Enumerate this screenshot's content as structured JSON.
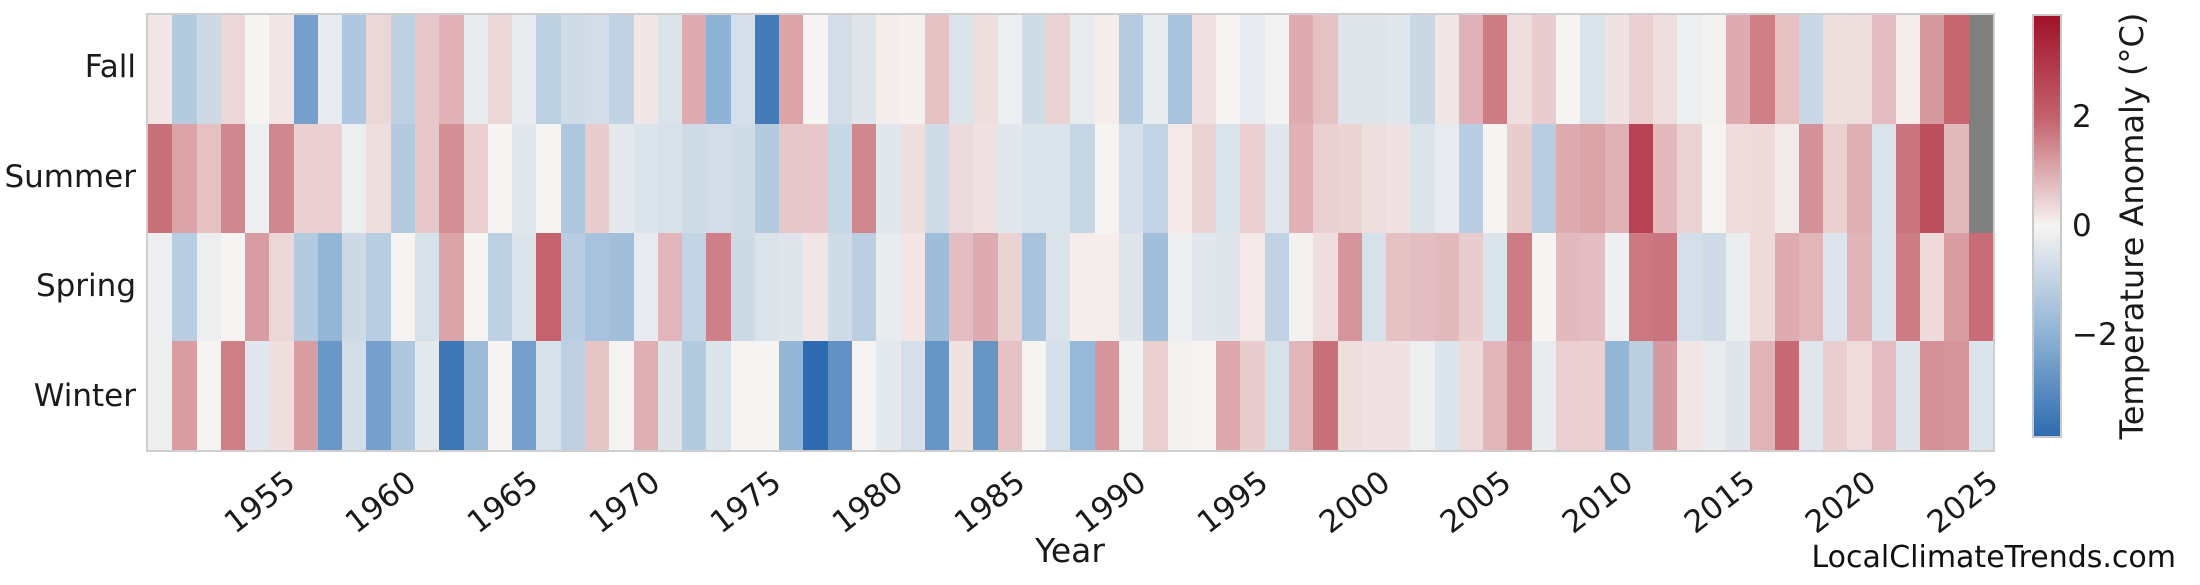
{
  "watermark": "LocalClimateTrends.com",
  "chart_data": {
    "type": "heatmap",
    "xlabel": "Year",
    "colorbar_label": "Temperature Anomaly (°C)",
    "rows": [
      "Fall",
      "Summer",
      "Spring",
      "Winter"
    ],
    "year_start": 1950,
    "year_end": 2025,
    "x_tick_labels": [
      "1955",
      "1960",
      "1965",
      "1970",
      "1975",
      "1980",
      "1985",
      "1990",
      "1995",
      "2000",
      "2005",
      "2010",
      "2015",
      "2020",
      "2025"
    ],
    "colorbar_ticks": [
      {
        "label": "2",
        "value": 2
      },
      {
        "label": "0",
        "value": 0
      },
      {
        "label": "−2",
        "value": -2
      }
    ],
    "vmin": -3.9,
    "vmax": 3.9,
    "colormap_stops": [
      [
        -3.9,
        "#2f6bb0"
      ],
      [
        -2,
        "#8fb3d5"
      ],
      [
        0,
        "#f6f4f2"
      ],
      [
        2,
        "#c4626e"
      ],
      [
        3.9,
        "#a01229"
      ]
    ],
    "missing_color": "#808080",
    "grid": false,
    "legend_position": "right-colorbar",
    "series": [
      {
        "name": "Fall",
        "values": [
          0.2,
          -1.3,
          -0.8,
          0.4,
          0,
          0.2,
          -2.5,
          -0.3,
          -1.4,
          0.4,
          -1.1,
          0.6,
          0.9,
          -0.25,
          0.4,
          -0.25,
          -1.1,
          -0.75,
          -0.7,
          -1.05,
          0.2,
          -0.55,
          1.0,
          -2.0,
          -0.65,
          -3.5,
          1.1,
          0,
          -0.7,
          -0.45,
          0.1,
          0.05,
          0.7,
          -0.5,
          0.3,
          -0.2,
          -0.75,
          0.45,
          -0.25,
          0.1,
          -1.25,
          -0.25,
          -1.5,
          0.25,
          0,
          -0.3,
          -0.05,
          1.0,
          0.7,
          -0.45,
          -0.45,
          -0.4,
          -0.85,
          0.2,
          0.9,
          1.65,
          0.3,
          0.55,
          0,
          -0.55,
          0.25,
          0.5,
          0.3,
          -0.2,
          -0.05,
          1.0,
          1.6,
          0.7,
          -0.85,
          0.28,
          0.3,
          0.75,
          0.1,
          1.25,
          1.95,
          null
        ]
      },
      {
        "name": "Summer",
        "values": [
          1.8,
          1.1,
          0.7,
          1.5,
          -0.2,
          1.5,
          0.5,
          0.5,
          -0.2,
          0.3,
          -1.3,
          0.6,
          1.4,
          0.5,
          0,
          -0.4,
          0,
          -1.4,
          0.55,
          -0.35,
          -0.5,
          -0.6,
          -0.75,
          -0.7,
          -0.75,
          -1.3,
          0.6,
          0.6,
          -0.9,
          1.5,
          -0.4,
          0.3,
          -0.75,
          0.35,
          0.25,
          -0.4,
          -0.55,
          -0.5,
          -0.95,
          0,
          -0.65,
          -1.0,
          0.15,
          0.45,
          -0.5,
          0.5,
          -0.4,
          0.9,
          0.5,
          0.45,
          0.3,
          0.25,
          -0.5,
          -0.3,
          -1.2,
          0,
          0.55,
          -1.2,
          1.0,
          1.1,
          0.9,
          2.75,
          0.8,
          0.45,
          0,
          0.33,
          0.35,
          0.12,
          1.35,
          0.5,
          0.95,
          -0.55,
          1.75,
          2.45,
          0.8,
          null
        ]
      },
      {
        "name": "Spring",
        "values": [
          -0.2,
          -1.2,
          -0.2,
          0,
          1.2,
          0.4,
          -1.3,
          -1.9,
          -0.8,
          -1.2,
          0,
          -0.6,
          1.1,
          0,
          -1.1,
          -0.5,
          2.0,
          -1.2,
          -1.55,
          -1.65,
          -0.3,
          0.85,
          -1.0,
          1.6,
          -0.8,
          -0.55,
          -0.45,
          0.2,
          -0.75,
          -1.15,
          -0.25,
          0.2,
          -1.7,
          0.75,
          1.0,
          0.45,
          -1.5,
          -0.55,
          0.1,
          0.1,
          -0.45,
          -1.65,
          -0.2,
          -0.4,
          -0.45,
          0.15,
          -1.05,
          -0.05,
          0.3,
          1.3,
          -0.6,
          0.7,
          0.75,
          0.8,
          0.55,
          -0.5,
          1.65,
          0,
          0.8,
          0.75,
          -0.15,
          1.7,
          1.75,
          -0.65,
          -0.75,
          -0.22,
          0.35,
          1.0,
          0.85,
          -0.48,
          0.88,
          -0.5,
          1.65,
          0.35,
          1.2,
          1.85
        ]
      },
      {
        "name": "Winter",
        "values": [
          -0.2,
          1.2,
          0,
          1.6,
          -0.4,
          0.3,
          1.2,
          -2.75,
          -0.7,
          -2.5,
          -1.4,
          -0.35,
          -3.6,
          -1.75,
          0,
          -2.5,
          -0.6,
          -1.1,
          0.65,
          0,
          0.95,
          -0.45,
          -1.3,
          -0.5,
          0,
          0,
          -1.9,
          -3.9,
          -2.9,
          0,
          -0.35,
          -0.65,
          -2.8,
          0.25,
          -2.8,
          0.7,
          0,
          -0.65,
          -1.85,
          1.3,
          -0.1,
          0.5,
          -0.05,
          0,
          1.05,
          0.55,
          -0.6,
          0.85,
          1.8,
          0.3,
          0.25,
          0.25,
          -0.2,
          -0.5,
          0.35,
          0.85,
          1.45,
          -0.25,
          0.5,
          0.5,
          -1.9,
          -1.15,
          1.25,
          0.2,
          -0.25,
          -0.45,
          0.88,
          1.9,
          -0.43,
          0.52,
          0.33,
          0.75,
          -0.45,
          1.35,
          1.3,
          -0.5
        ]
      }
    ]
  }
}
